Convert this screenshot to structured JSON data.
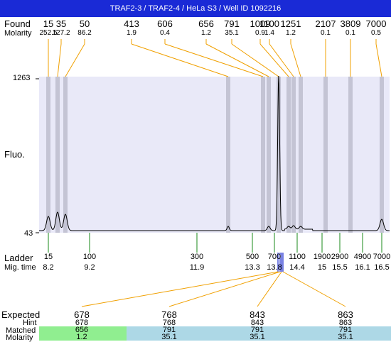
{
  "title": "TRAF2-3 / TRAF2-4 / HeLa S3 / Well ID 1092216",
  "labels": {
    "found": "Found",
    "molarity": "Molarity",
    "fluo": "Fluo.",
    "ladder": "Ladder",
    "mig_time": "Mig. time",
    "expected": "Expected",
    "hint": "Hint",
    "matched": "Matched",
    "molarity2": "Molarity"
  },
  "y_axis": {
    "max": "1263",
    "min": "43"
  },
  "found_peaks": [
    {
      "size": "15",
      "molarity": "252.5"
    },
    {
      "size": "35",
      "molarity": "127.2"
    },
    {
      "size": "50",
      "molarity": "86.2"
    },
    {
      "size": "413",
      "molarity": "1.9"
    },
    {
      "size": "606",
      "molarity": "0.4"
    },
    {
      "size": "656",
      "molarity": "1.2"
    },
    {
      "size": "791",
      "molarity": "35.1"
    },
    {
      "size": "1009",
      "molarity": "0.9"
    },
    {
      "size": "1100",
      "molarity": "1.4"
    },
    {
      "size": "1251",
      "molarity": "1.2"
    },
    {
      "size": "2107",
      "molarity": "0.1"
    },
    {
      "size": "3809",
      "molarity": "0.1"
    },
    {
      "size": "7000",
      "molarity": "0.5"
    }
  ],
  "ladder": [
    {
      "size": "15",
      "time": "8.2"
    },
    {
      "size": "100",
      "time": "9.2"
    },
    {
      "size": "300",
      "time": "11.9"
    },
    {
      "size": "500",
      "time": "13.3"
    },
    {
      "size": "700",
      "time": "13.8"
    },
    {
      "size": "1100",
      "time": "14.4"
    },
    {
      "size": "1900",
      "time": "15"
    },
    {
      "size": "2900",
      "time": "15.5"
    },
    {
      "size": "4900",
      "time": "16.1"
    },
    {
      "size": "7000",
      "time": "16.5"
    }
  ],
  "expected": [
    {
      "expected": "678",
      "hint": "678",
      "matched": "656",
      "molarity": "1.2",
      "status": "match"
    },
    {
      "expected": "768",
      "hint": "768",
      "matched": "791",
      "molarity": "35.1",
      "status": "partial"
    },
    {
      "expected": "843",
      "hint": "843",
      "matched": "791",
      "molarity": "35.1",
      "status": "partial"
    },
    {
      "expected": "863",
      "hint": "863",
      "matched": "791",
      "molarity": "35.1",
      "status": "partial"
    }
  ],
  "colors": {
    "title_bg": "#1a2ad6",
    "plot_bg": "#e9e9f8",
    "peak_band": "#c4c4d4",
    "connector": "#f0a000",
    "ladder_tick": "#1a8a1a",
    "trace": "#000000",
    "match_green": "#90ee90",
    "partial_blue": "#add8e6"
  }
}
